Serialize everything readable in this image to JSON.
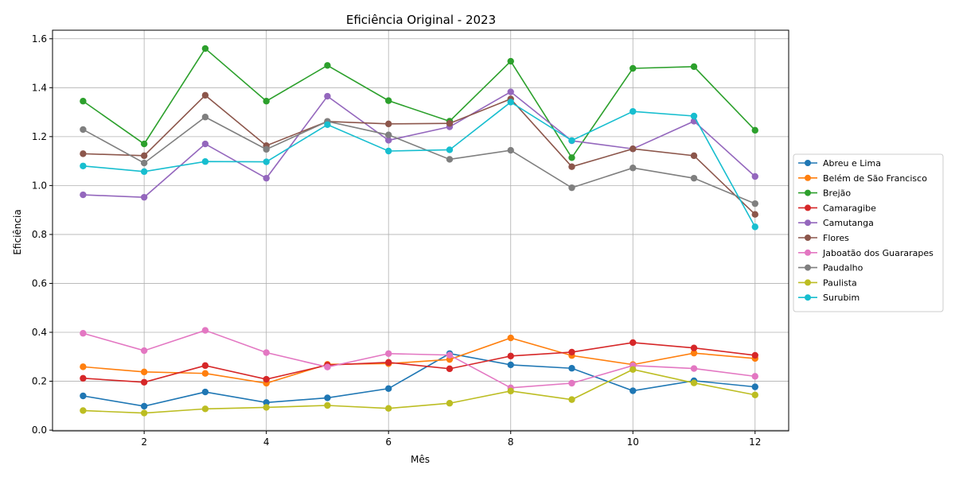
{
  "chart_data": {
    "type": "line",
    "title": "Eficiência Original - 2023",
    "xlabel": "Mês",
    "ylabel": "Eficiência",
    "xlim": [
      0.5,
      12.55
    ],
    "ylim": [
      -0.003,
      1.635
    ],
    "x": [
      1,
      2,
      3,
      4,
      5,
      6,
      7,
      8,
      9,
      10,
      11,
      12
    ],
    "x_ticks": [
      2,
      4,
      6,
      8,
      10,
      12
    ],
    "x_tick_labels": [
      "2",
      "4",
      "6",
      "8",
      "10",
      "12"
    ],
    "y_ticks": [
      0.0,
      0.2,
      0.4,
      0.6,
      0.8,
      1.0,
      1.2,
      1.4,
      1.6
    ],
    "y_tick_labels": [
      "0.0",
      "0.2",
      "0.4",
      "0.6",
      "0.8",
      "1.0",
      "1.2",
      "1.4",
      "1.6"
    ],
    "grid": true,
    "legend_position": "right-outside",
    "series": [
      {
        "name": "Abreu e Lima",
        "color": "#1f77b4",
        "values": [
          0.14,
          0.098,
          0.156,
          0.113,
          0.132,
          0.17,
          0.313,
          0.267,
          0.253,
          0.161,
          0.202,
          0.177
        ]
      },
      {
        "name": "Belém de São Francisco",
        "color": "#ff7f0e",
        "values": [
          0.259,
          0.238,
          0.232,
          0.192,
          0.269,
          0.272,
          0.289,
          0.377,
          0.305,
          0.268,
          0.315,
          0.293
        ]
      },
      {
        "name": "Brejão",
        "color": "#2ca02c",
        "values": [
          1.345,
          1.17,
          1.56,
          1.345,
          1.491,
          1.347,
          1.263,
          1.508,
          1.114,
          1.479,
          1.486,
          1.226
        ]
      },
      {
        "name": "Camaragibe",
        "color": "#d62728",
        "values": [
          0.212,
          0.196,
          0.264,
          0.208,
          0.266,
          0.277,
          0.251,
          0.303,
          0.319,
          0.358,
          0.336,
          0.306
        ]
      },
      {
        "name": "Camutanga",
        "color": "#9467bd",
        "values": [
          0.962,
          0.952,
          1.17,
          1.03,
          1.365,
          1.185,
          1.24,
          1.383,
          1.183,
          1.15,
          1.263,
          1.037
        ]
      },
      {
        "name": "Flores",
        "color": "#8c564b",
        "values": [
          1.13,
          1.122,
          1.369,
          1.163,
          1.262,
          1.252,
          1.254,
          1.354,
          1.077,
          1.15,
          1.122,
          0.882
        ]
      },
      {
        "name": "Jaboatão dos Guararapes",
        "color": "#e377c2",
        "values": [
          0.396,
          0.325,
          0.408,
          0.317,
          0.258,
          0.313,
          0.307,
          0.173,
          0.192,
          0.264,
          0.252,
          0.22
        ]
      },
      {
        "name": "Paudalho",
        "color": "#7f7f7f",
        "values": [
          1.229,
          1.092,
          1.28,
          1.148,
          1.262,
          1.207,
          1.107,
          1.144,
          0.991,
          1.072,
          1.03,
          0.926
        ]
      },
      {
        "name": "Paulista",
        "color": "#bcbd22",
        "values": [
          0.08,
          0.07,
          0.087,
          0.093,
          0.101,
          0.089,
          0.11,
          0.16,
          0.125,
          0.248,
          0.193,
          0.144
        ]
      },
      {
        "name": "Surubim",
        "color": "#17becf",
        "values": [
          1.08,
          1.057,
          1.098,
          1.097,
          1.249,
          1.141,
          1.146,
          1.341,
          1.184,
          1.303,
          1.284,
          0.831
        ]
      }
    ]
  }
}
